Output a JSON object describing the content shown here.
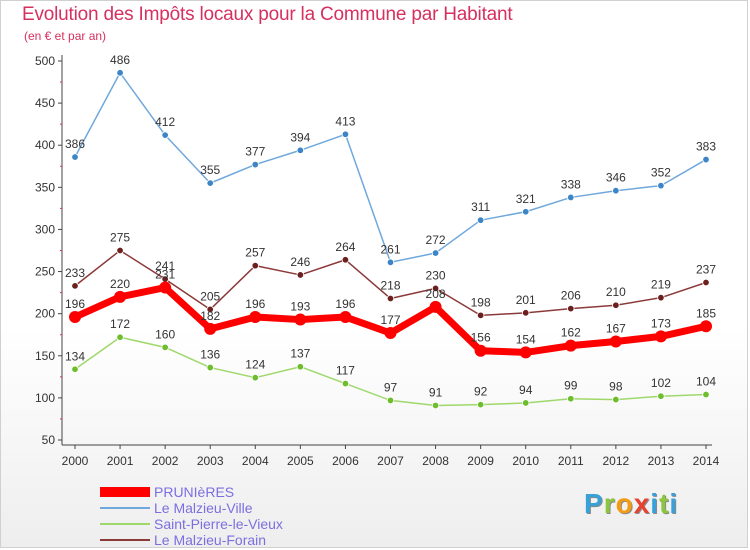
{
  "title": "Evolution des Impôts locaux pour la Commune par Habitant",
  "subtitle": "(en € et par an)",
  "logo_text": "Proxiti",
  "chart_data": {
    "type": "line",
    "x": [
      2000,
      2001,
      2002,
      2003,
      2004,
      2005,
      2006,
      2007,
      2008,
      2009,
      2010,
      2011,
      2012,
      2013,
      2014
    ],
    "x_tick_labels": [
      "2000",
      "2001",
      "2002",
      "2003",
      "2004",
      "2005",
      "2006",
      "2007",
      "2008",
      "2009",
      "2010",
      "2011",
      "2012",
      "2013",
      "2014"
    ],
    "ylim": [
      50,
      500
    ],
    "y_ticks": [
      50,
      100,
      150,
      200,
      250,
      300,
      350,
      400,
      450,
      500
    ],
    "y_tick_labels": [
      "50",
      "100",
      "150",
      "200",
      "250",
      "300",
      "350",
      "400",
      "450",
      "500"
    ],
    "grid": false,
    "legend_position": "bottom-left",
    "series": [
      {
        "name": "PRUNIèRES",
        "color": "#ff0000",
        "marker_color": "#ff0000",
        "emphasis": true,
        "values": [
          196,
          220,
          231,
          182,
          196,
          193,
          196,
          177,
          208,
          156,
          154,
          162,
          167,
          173,
          185
        ],
        "labels": [
          "196",
          "220",
          "231",
          "182",
          "196",
          "193",
          "196",
          "177",
          "208",
          "156",
          "154",
          "162",
          "167",
          "173",
          "185"
        ]
      },
      {
        "name": "Le Malzieu-Ville",
        "color": "#6fa8dc",
        "marker_color": "#3d85c6",
        "emphasis": false,
        "values": [
          386,
          486,
          412,
          355,
          377,
          394,
          413,
          261,
          272,
          311,
          321,
          338,
          346,
          352,
          383
        ],
        "labels": [
          "386",
          "486",
          "412",
          "355",
          "377",
          "394",
          "413",
          "261",
          "272",
          "311",
          "321",
          "338",
          "346",
          "352",
          "383"
        ]
      },
      {
        "name": "Saint-Pierre-le-Vieux",
        "color": "#9fd86a",
        "marker_color": "#6ebd2e",
        "emphasis": false,
        "values": [
          134,
          172,
          160,
          136,
          124,
          137,
          117,
          97,
          91,
          92,
          94,
          99,
          98,
          102,
          104
        ],
        "labels": [
          "134",
          "172",
          "160",
          "136",
          "124",
          "137",
          "117",
          "97",
          "91",
          "92",
          "94",
          "99",
          "98",
          "102",
          "104"
        ]
      },
      {
        "name": "Le Malzieu-Forain",
        "color": "#8b3a3a",
        "marker_color": "#6b1f1f",
        "emphasis": false,
        "values": [
          233,
          275,
          241,
          205,
          257,
          246,
          264,
          218,
          230,
          198,
          201,
          206,
          210,
          219,
          237
        ],
        "labels": [
          "233",
          "275",
          "241",
          "205",
          "257",
          "246",
          "264",
          "218",
          "230",
          "198",
          "201",
          "206",
          "210",
          "219",
          "237"
        ]
      }
    ]
  }
}
